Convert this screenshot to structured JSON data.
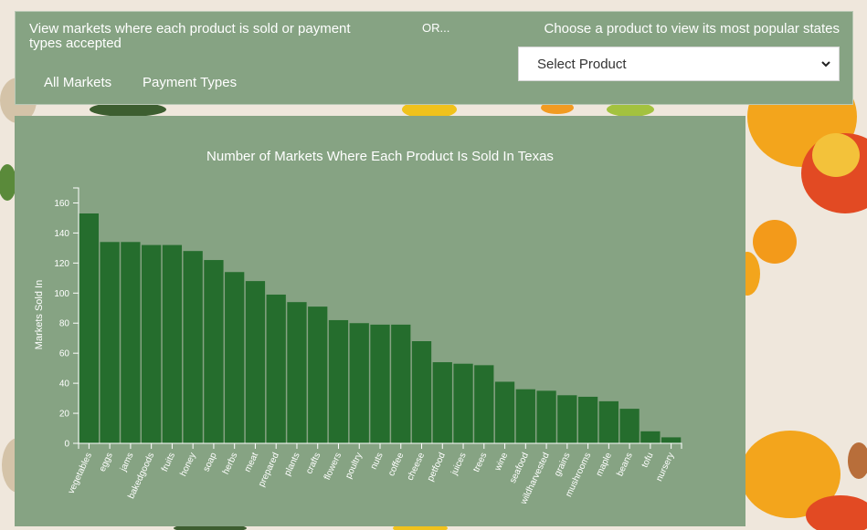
{
  "panel": {
    "description": "View markets where each product is sold or payment types accepted",
    "or_label": "OR...",
    "choose_label": "Choose a product to view its most popular states",
    "tabs": [
      {
        "label": "All Markets"
      },
      {
        "label": "Payment Types"
      }
    ],
    "select": {
      "selected": "Select Product"
    }
  },
  "colors": {
    "panel_bg": "#86a383",
    "bar": "#256d2d",
    "text": "#ffffff"
  },
  "chart_data": {
    "type": "bar",
    "title": "Number of Markets Where Each Product Is Sold In Texas",
    "xlabel": "",
    "ylabel": "Markets Sold In",
    "ylim": [
      0,
      170
    ],
    "yticks": [
      0,
      20,
      40,
      60,
      80,
      100,
      120,
      140,
      160
    ],
    "grid": false,
    "categories": [
      "vegetables",
      "eggs",
      "jams",
      "bakedgoods",
      "fruits",
      "honey",
      "soap",
      "herbs",
      "meat",
      "prepared",
      "plants",
      "crafts",
      "flowers",
      "poultry",
      "nuts",
      "coffee",
      "cheese",
      "petfood",
      "juices",
      "trees",
      "wine",
      "seafood",
      "wildharvested",
      "grains",
      "mushrooms",
      "maple",
      "beans",
      "tofu",
      "nursery"
    ],
    "values": [
      153,
      134,
      134,
      132,
      132,
      128,
      122,
      114,
      108,
      99,
      94,
      91,
      82,
      80,
      79,
      79,
      68,
      54,
      53,
      52,
      41,
      36,
      35,
      32,
      31,
      28,
      23,
      8,
      4
    ]
  }
}
